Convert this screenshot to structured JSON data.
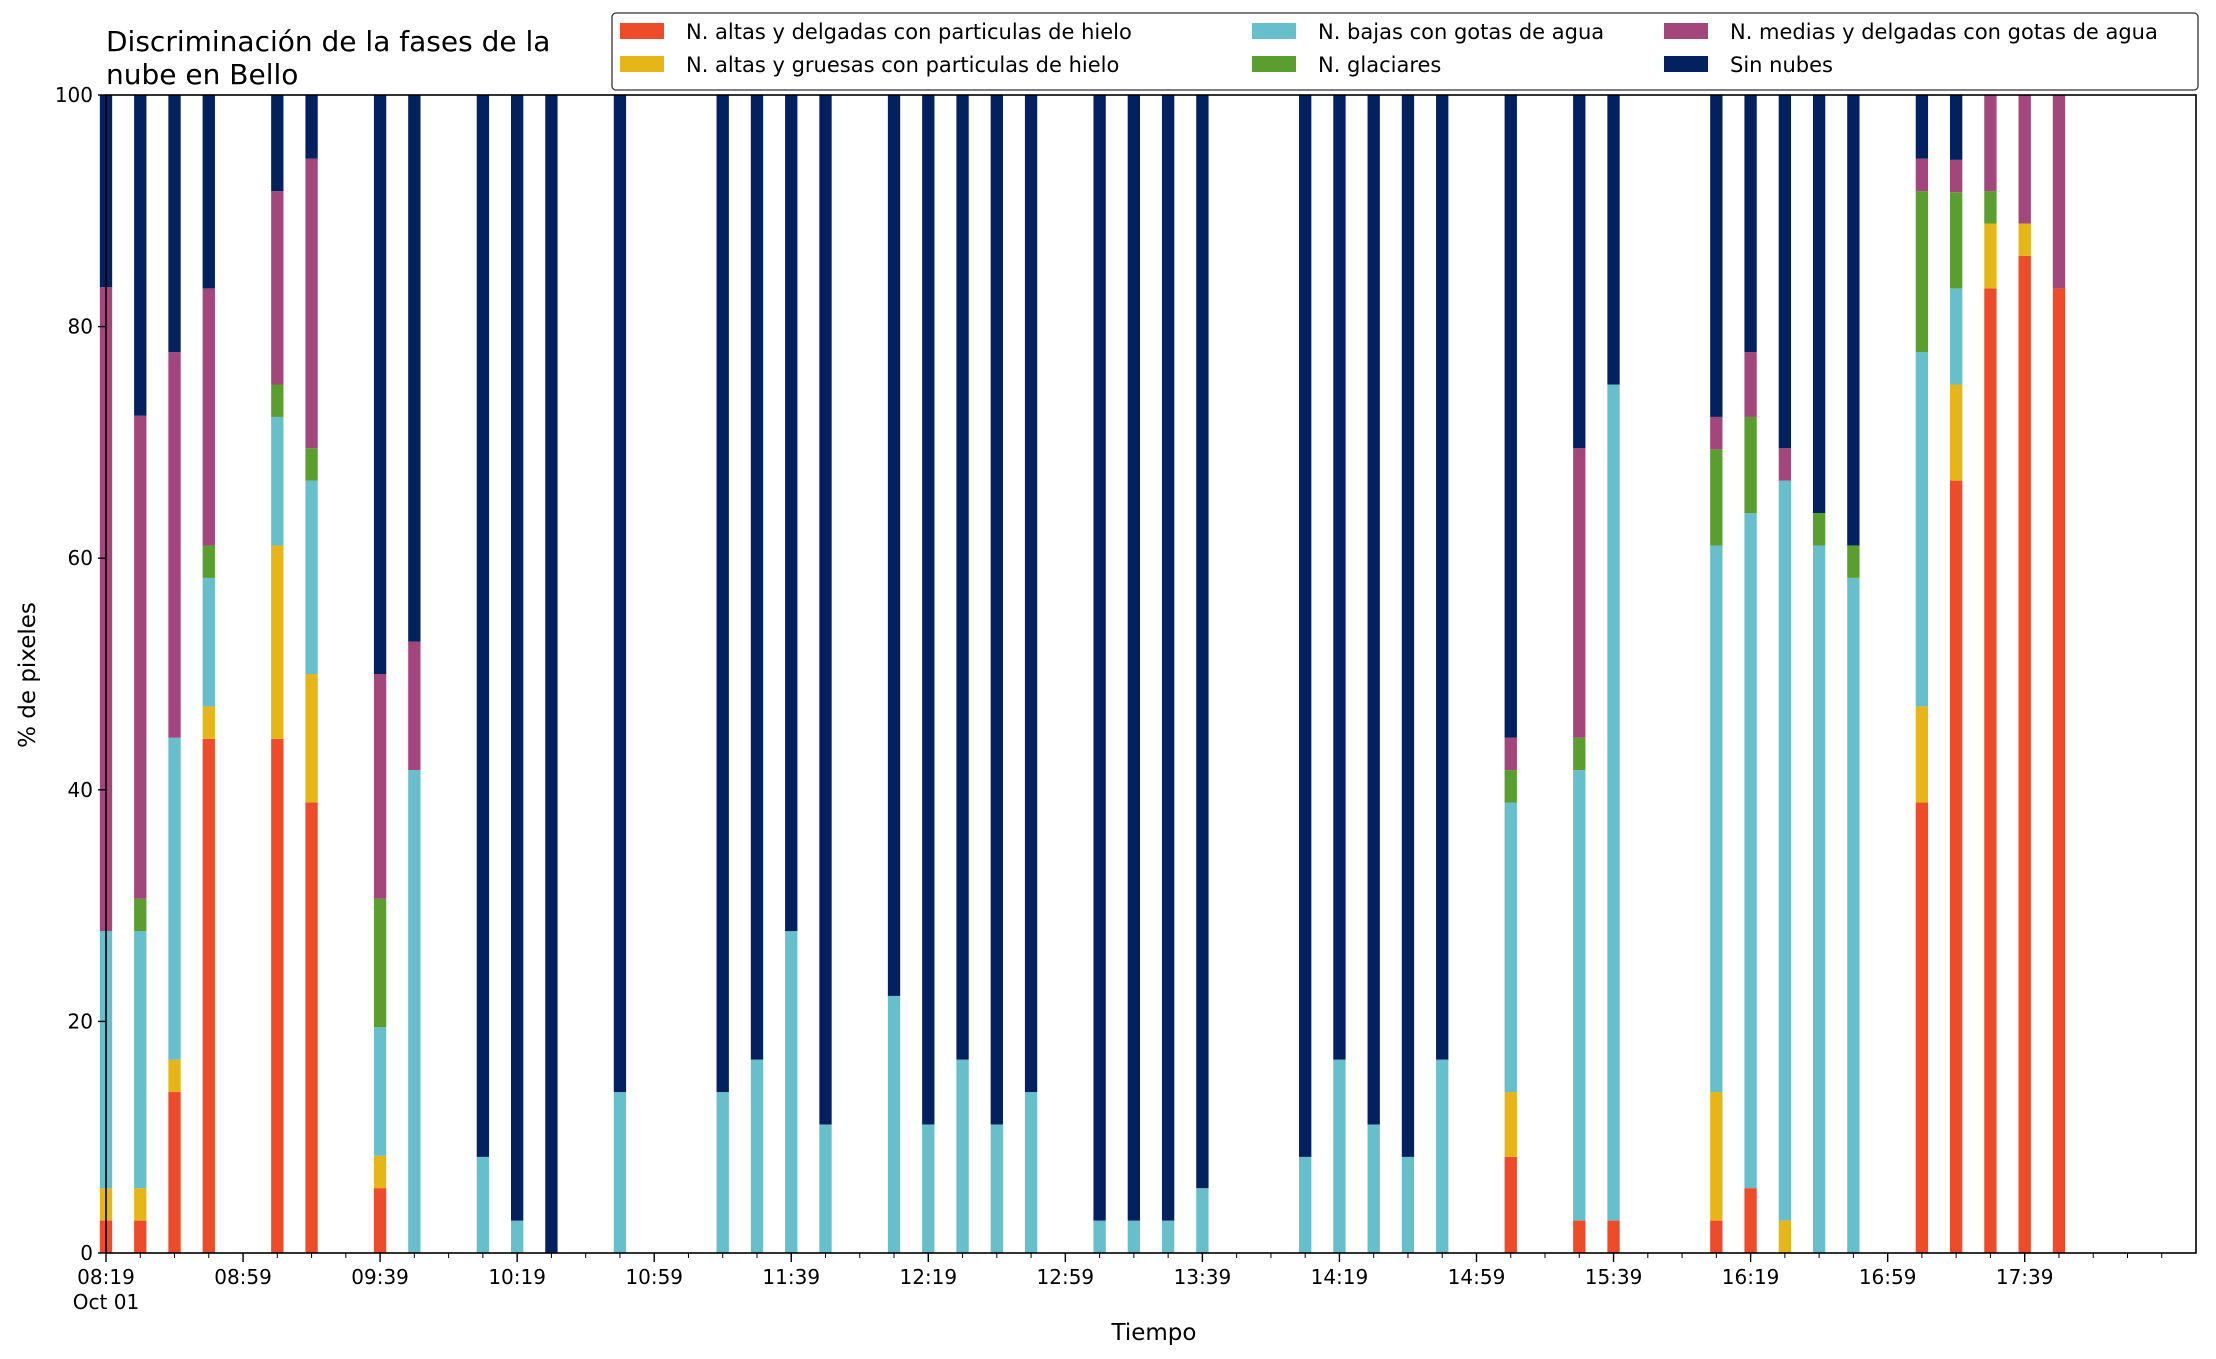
{
  "chart_data": {
    "type": "bar",
    "stacked": true,
    "title": "Discriminación de la fases de la nube en Bello",
    "title_lines": [
      "Discriminación de la fases de la",
      "nube en Bello"
    ],
    "xlabel": "Tiempo",
    "ylabel": "% de pixeles",
    "ylim": [
      0,
      100
    ],
    "yticks": [
      0,
      20,
      40,
      60,
      80,
      100
    ],
    "x_domain": [
      "08:19",
      "18:29"
    ],
    "bar_width_minutes": 6,
    "xticks": [
      {
        "time": "08:19",
        "label": "08:19",
        "sublabel": "Oct 01"
      },
      {
        "time": "08:59",
        "label": "08:59"
      },
      {
        "time": "09:39",
        "label": "09:39"
      },
      {
        "time": "10:19",
        "label": "10:19"
      },
      {
        "time": "10:59",
        "label": "10:59"
      },
      {
        "time": "11:39",
        "label": "11:39"
      },
      {
        "time": "12:19",
        "label": "12:19"
      },
      {
        "time": "12:59",
        "label": "12:59"
      },
      {
        "time": "13:39",
        "label": "13:39"
      },
      {
        "time": "14:19",
        "label": "14:19"
      },
      {
        "time": "14:59",
        "label": "14:59"
      },
      {
        "time": "15:39",
        "label": "15:39"
      },
      {
        "time": "16:19",
        "label": "16:19"
      },
      {
        "time": "16:59",
        "label": "16:59"
      },
      {
        "time": "17:39",
        "label": "17:39"
      }
    ],
    "legend_position": "top",
    "legend": [
      "N. altas y delgadas con particulas de hielo",
      "N. altas y gruesas con particulas de hielo",
      "N. bajas con gotas de agua",
      "N. glaciares",
      "N. medias y delgadas con gotas de agua",
      "Sin nubes"
    ],
    "x": [
      "08:19",
      "08:29",
      "08:39",
      "08:49",
      "09:09",
      "09:19",
      "09:39",
      "09:49",
      "10:09",
      "10:19",
      "10:29",
      "10:49",
      "11:19",
      "11:29",
      "11:39",
      "11:49",
      "12:09",
      "12:19",
      "12:29",
      "12:39",
      "12:49",
      "13:09",
      "13:19",
      "13:29",
      "13:39",
      "14:09",
      "14:19",
      "14:29",
      "14:39",
      "14:49",
      "15:09",
      "15:29",
      "15:39",
      "16:09",
      "16:19",
      "16:29",
      "16:39",
      "16:49",
      "17:09",
      "17:19",
      "17:29",
      "17:39",
      "17:49"
    ],
    "series": [
      {
        "name": "N. altas y delgadas con particulas de hielo",
        "color": "#ee4b2b",
        "values": [
          2.8,
          2.8,
          13.9,
          44.4,
          44.4,
          38.9,
          5.6,
          0,
          0,
          0,
          0,
          0,
          0,
          0,
          0,
          0,
          0,
          0,
          0,
          0,
          0,
          0,
          0,
          0,
          0,
          0,
          0,
          0,
          0,
          0,
          8.3,
          2.8,
          2.8,
          2.8,
          5.6,
          0,
          0,
          0,
          38.9,
          66.7,
          83.3,
          86.1,
          83.3
        ]
      },
      {
        "name": "N. altas y gruesas con particulas de hielo",
        "color": "#e6b619",
        "values": [
          2.8,
          2.8,
          2.8,
          2.8,
          16.7,
          11.1,
          2.8,
          0,
          0,
          0,
          0,
          0,
          0,
          0,
          0,
          0,
          0,
          0,
          0,
          0,
          0,
          0,
          0,
          0,
          0,
          0,
          0,
          0,
          0,
          0,
          5.6,
          0,
          0,
          11.1,
          0,
          2.8,
          0,
          0,
          8.3,
          8.3,
          5.6,
          2.8,
          0
        ]
      },
      {
        "name": "N. bajas con gotas de agua",
        "color": "#66bfca",
        "values": [
          22.2,
          22.2,
          27.8,
          11.1,
          11.1,
          16.7,
          11.1,
          41.7,
          8.3,
          2.8,
          0,
          13.9,
          13.9,
          16.7,
          27.8,
          11.1,
          22.2,
          11.1,
          16.7,
          11.1,
          13.9,
          2.8,
          2.8,
          2.8,
          5.6,
          8.3,
          16.7,
          11.1,
          8.3,
          16.7,
          25.0,
          38.9,
          72.2,
          47.2,
          58.3,
          63.9,
          61.1,
          58.3,
          30.6,
          8.3,
          0,
          0,
          0
        ]
      },
      {
        "name": "N. glaciares",
        "color": "#5a9e2f",
        "values": [
          0,
          2.8,
          0,
          2.8,
          2.8,
          2.8,
          11.1,
          0,
          0,
          0,
          0,
          0,
          0,
          0,
          0,
          0,
          0,
          0,
          0,
          0,
          0,
          0,
          0,
          0,
          0,
          0,
          0,
          0,
          0,
          0,
          2.8,
          2.8,
          0,
          8.3,
          8.3,
          0,
          2.8,
          2.8,
          13.9,
          8.3,
          2.8,
          0,
          0
        ]
      },
      {
        "name": "N. medias y delgadas con gotas de agua",
        "color": "#a3467b",
        "values": [
          55.6,
          41.7,
          33.3,
          22.2,
          16.7,
          25.0,
          19.4,
          11.1,
          0,
          0,
          0,
          0,
          0,
          0,
          0,
          0,
          0,
          0,
          0,
          0,
          0,
          0,
          0,
          0,
          0,
          0,
          0,
          0,
          0,
          0,
          2.8,
          25.0,
          0,
          2.8,
          5.6,
          2.8,
          0,
          0,
          2.8,
          2.8,
          8.3,
          11.1,
          16.7
        ]
      },
      {
        "name": "Sin nubes",
        "color": "#03215f",
        "values": [
          16.6,
          27.7,
          22.2,
          16.7,
          8.3,
          5.5,
          50.0,
          47.2,
          91.7,
          97.2,
          100,
          86.1,
          86.1,
          83.3,
          72.2,
          88.9,
          77.8,
          88.9,
          83.3,
          88.9,
          86.1,
          97.2,
          97.2,
          97.2,
          94.4,
          91.7,
          83.3,
          88.9,
          91.7,
          83.3,
          55.5,
          30.5,
          25.0,
          27.8,
          22.2,
          30.5,
          36.1,
          38.9,
          5.5,
          5.6,
          0,
          0,
          0
        ]
      }
    ]
  }
}
